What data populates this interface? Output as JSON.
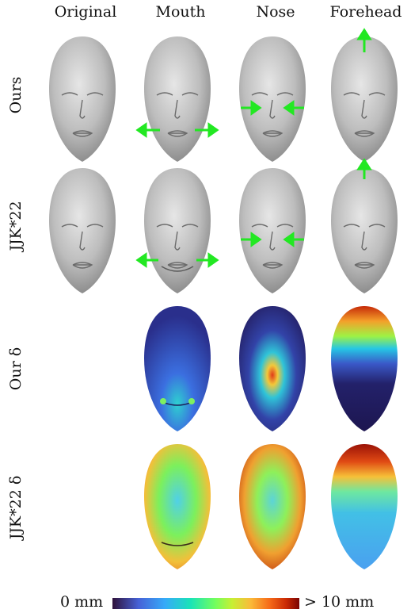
{
  "columns": [
    "Original",
    "Mouth",
    "Nose",
    "Forehead"
  ],
  "rows": [
    "Ours",
    "JJK*22",
    "Our δ",
    "JJK*22 δ"
  ],
  "colorbar": {
    "min_label": "0 mm",
    "max_label": "> 10 mm"
  },
  "colors": {
    "mesh": "#b9b9b9",
    "arrow": "#22e822"
  }
}
